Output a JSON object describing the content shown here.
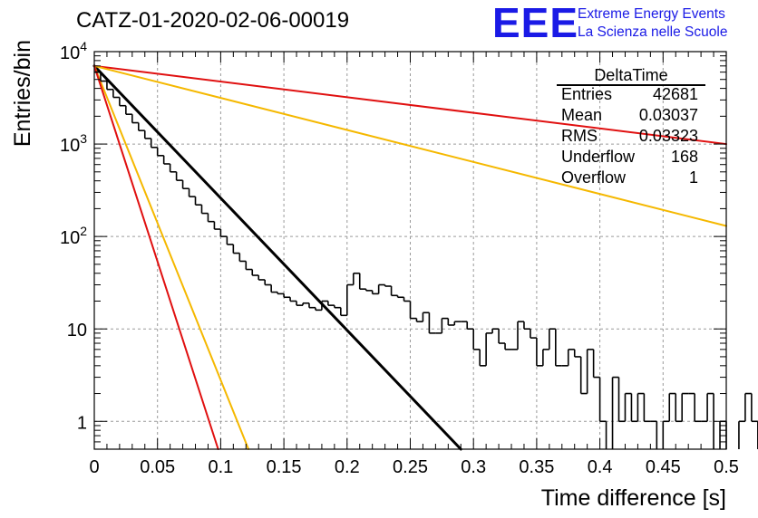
{
  "header": {
    "title": "CATZ-01-2020-02-06-00019",
    "logo_mark": "EEE",
    "logo_line1": "Extreme Energy Events",
    "logo_line2": "La Scienza nelle Scuole"
  },
  "stats_box": {
    "name": "DeltaTime",
    "rows": [
      {
        "label": "Entries",
        "value": "42681"
      },
      {
        "label": "Mean",
        "value": "0.03037"
      },
      {
        "label": "RMS",
        "value": "0.03323"
      },
      {
        "label": "Underflow",
        "value": "168"
      },
      {
        "label": "Overflow",
        "value": "1"
      }
    ]
  },
  "colors": {
    "histogram": "#000000",
    "fit": "#000000",
    "red_curve": "#e01010",
    "orange_curve": "#f5b800",
    "grid": "#9a9a9a",
    "logo": "#1a1ae6"
  },
  "chart_data": {
    "type": "histogram",
    "xlabel": "Time difference [s]",
    "ylabel": "Entries/bin",
    "xlim": [
      0,
      0.5
    ],
    "ylim": [
      0.5,
      10000
    ],
    "yscale": "log",
    "grid": true,
    "x_ticks": [
      0,
      0.05,
      0.1,
      0.15,
      0.2,
      0.25,
      0.3,
      0.35,
      0.4,
      0.45,
      0.5
    ],
    "x_tick_labels": [
      "0",
      "0.05",
      "0.1",
      "0.15",
      "0.2",
      "0.25",
      "0.3",
      "0.35",
      "0.4",
      "0.45",
      "0.5"
    ],
    "y_ticks": [
      1,
      10,
      100,
      1000,
      10000
    ],
    "y_tick_labels": [
      {
        "base": "1",
        "exp": ""
      },
      {
        "base": "10",
        "exp": ""
      },
      {
        "base": "10",
        "exp": "2"
      },
      {
        "base": "10",
        "exp": "3"
      },
      {
        "base": "10",
        "exp": "4"
      }
    ],
    "bin_width": 0.005,
    "bin_counts": [
      6000,
      4800,
      3900,
      3200,
      2600,
      2100,
      1700,
      1400,
      1150,
      920,
      750,
      610,
      500,
      405,
      330,
      270,
      220,
      178,
      145,
      120,
      100,
      82,
      66,
      54,
      44,
      38,
      34,
      30,
      25,
      24,
      22,
      20,
      18,
      19,
      17,
      16,
      20,
      18,
      17,
      14,
      30,
      40,
      27,
      26,
      24,
      30,
      29,
      23,
      22,
      20,
      13,
      12,
      15,
      9,
      9,
      13,
      11,
      12,
      12,
      10,
      6,
      4,
      9,
      10,
      7,
      6,
      6,
      12,
      10,
      8,
      4,
      6,
      10,
      4,
      4,
      6,
      5,
      2,
      6,
      3,
      1,
      0,
      3,
      1,
      2,
      1,
      2,
      1,
      1,
      0,
      1,
      2,
      1,
      2,
      2,
      1,
      1,
      2,
      0,
      1,
      0,
      0,
      1,
      2,
      1,
      0,
      1,
      0,
      2,
      0,
      1,
      0,
      1,
      1,
      0,
      0,
      2,
      0,
      1,
      0,
      2,
      2,
      0,
      1,
      0,
      0,
      0,
      0,
      0,
      1,
      0,
      0,
      0,
      1,
      0,
      0,
      0,
      0,
      1,
      0,
      0,
      1,
      1,
      0,
      0,
      1,
      0,
      0,
      0,
      0
    ],
    "series": [
      {
        "name": "",
        "kind": "fit",
        "color": "#000000",
        "x": [
          0,
          0.29
        ],
        "y": [
          7000,
          0.5
        ]
      },
      {
        "name": "",
        "kind": "curve",
        "color": "#e01010",
        "x": [
          0,
          0.5
        ],
        "y": [
          7000,
          1000
        ]
      },
      {
        "name": "",
        "kind": "curve",
        "color": "#f5b800",
        "x": [
          0,
          0.5
        ],
        "y": [
          7000,
          130
        ]
      },
      {
        "name": "",
        "kind": "curve",
        "color": "#f5b800",
        "x": [
          0,
          0.122
        ],
        "y": [
          7000,
          0.5
        ]
      },
      {
        "name": "",
        "kind": "curve",
        "color": "#e01010",
        "x": [
          0,
          0.098
        ],
        "y": [
          7000,
          0.5
        ]
      }
    ]
  }
}
